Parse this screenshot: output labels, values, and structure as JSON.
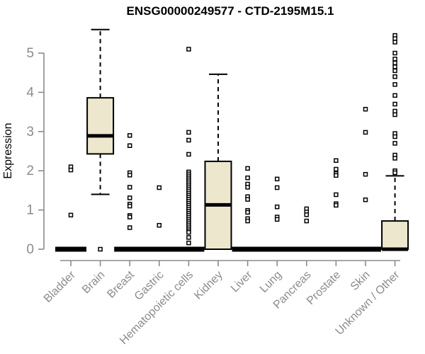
{
  "title": "ENSG00000249577 - CTD-2195M15.1",
  "chart_data": {
    "type": "boxplot",
    "title": "ENSG00000249577 - CTD-2195M15.1",
    "xlabel": "",
    "ylabel": "Expression",
    "ylim": [
      0,
      5.6
    ],
    "yticks": [
      0,
      1,
      2,
      3,
      4,
      5
    ],
    "grid": false,
    "legend": "none",
    "categories": [
      "Bladder",
      "Brain",
      "Breast",
      "Gastric",
      "Hematopoietic cells",
      "Kidney",
      "Liver",
      "Lung",
      "Pancreas",
      "Prostate",
      "Skin",
      "Unknown / Other"
    ],
    "series": [
      {
        "name": "Bladder",
        "whisker_low": 0,
        "q1": 0,
        "median": 0,
        "q3": 0,
        "whisker_high": 0,
        "outliers": [
          2.1,
          2.02,
          0.87
        ]
      },
      {
        "name": "Brain",
        "whisker_low": 1.4,
        "q1": 2.43,
        "median": 2.89,
        "q3": 3.86,
        "whisker_high": 5.6,
        "outliers": [
          0
        ]
      },
      {
        "name": "Breast",
        "whisker_low": 0,
        "q1": 0,
        "median": 0,
        "q3": 0,
        "whisker_high": 0,
        "outliers": [
          2.9,
          2.64,
          1.95,
          1.89,
          1.58,
          1.31,
          1.15,
          1.1,
          0.86,
          0.82,
          0.55
        ]
      },
      {
        "name": "Gastric",
        "whisker_low": 0,
        "q1": 0,
        "median": 0,
        "q3": 0,
        "whisker_high": 0,
        "outliers": [
          1.57,
          0.61
        ]
      },
      {
        "name": "Hematopoietic cells",
        "whisker_low": 0,
        "q1": 0,
        "median": 0,
        "q3": 0,
        "whisker_high": 0,
        "outliers": [
          5.1,
          2.98,
          2.78,
          2.42,
          1.97,
          1.92,
          1.87,
          1.82,
          1.77,
          1.72,
          1.67,
          1.62,
          1.57,
          1.52,
          1.47,
          1.42,
          1.37,
          1.32,
          1.27,
          1.22,
          1.17,
          1.12,
          1.07,
          1.02,
          0.97,
          0.92,
          0.87,
          0.82,
          0.77,
          0.72,
          0.67,
          0.62,
          0.57,
          0.52,
          0.47,
          0.43,
          0.3,
          0.16
        ]
      },
      {
        "name": "Kidney",
        "whisker_low": 0,
        "q1": 0,
        "median": 1.13,
        "q3": 2.24,
        "whisker_high": 4.46,
        "outliers": []
      },
      {
        "name": "Liver",
        "whisker_low": 0,
        "q1": 0,
        "median": 0,
        "q3": 0,
        "whisker_high": 0,
        "outliers": [
          2.06,
          1.82,
          1.66,
          1.58,
          1.34,
          1.27,
          0.99,
          0.94,
          0.78,
          0.72
        ]
      },
      {
        "name": "Lung",
        "whisker_low": 0,
        "q1": 0,
        "median": 0,
        "q3": 0,
        "whisker_high": 0,
        "outliers": [
          1.79,
          1.57,
          1.08,
          0.82,
          0.76
        ]
      },
      {
        "name": "Pancreas",
        "whisker_low": 0,
        "q1": 0,
        "median": 0,
        "q3": 0,
        "whisker_high": 0,
        "outliers": [
          1.03,
          0.95,
          0.88,
          0.72
        ]
      },
      {
        "name": "Prostate",
        "whisker_low": 0,
        "q1": 0,
        "median": 0,
        "q3": 0,
        "whisker_high": 0,
        "outliers": [
          2.26,
          2.04,
          1.93,
          1.88,
          1.39,
          1.16,
          1.12
        ]
      },
      {
        "name": "Skin",
        "whisker_low": 0,
        "q1": 0,
        "median": 0,
        "q3": 0,
        "whisker_high": 0,
        "outliers": [
          3.57,
          2.98,
          1.91,
          1.26
        ]
      },
      {
        "name": "Unknown / Other",
        "whisker_low": 0,
        "q1": 0,
        "median": 0,
        "q3": 0.72,
        "whisker_high": 1.87,
        "outliers": [
          5.45,
          5.37,
          5.28,
          5.0,
          4.85,
          4.75,
          4.65,
          4.55,
          4.4,
          4.2,
          3.92,
          3.7,
          3.52,
          3.43,
          2.95,
          2.87,
          2.7,
          2.4,
          2.32,
          2.0,
          1.95
        ]
      }
    ],
    "colors": {
      "box_fill": "#EDE7CE",
      "box_stroke": "#000000",
      "median": "#000000",
      "whisker": "#000000",
      "outlier_stroke": "#000000",
      "outlier_fill": "#FFFFFF",
      "axis": "#8B8B8B",
      "axis_text": "#8B8B8B",
      "title_text": "#000000"
    }
  }
}
